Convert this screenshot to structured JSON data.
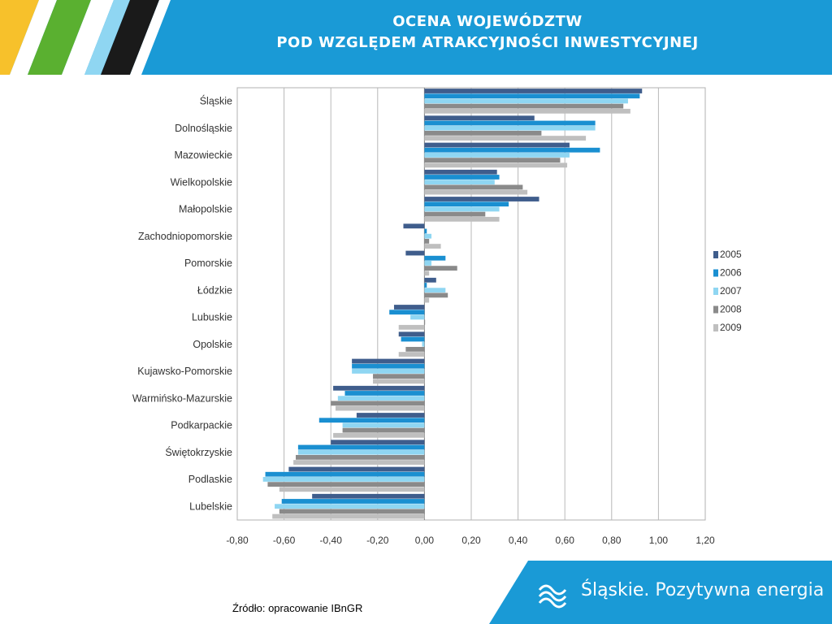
{
  "header": {
    "title_line1": "OCENA WOJEWÓDZTW",
    "title_line2": "POD WZGLĘDEM ATRAKCYJNOŚCI INWESTYCYJNEJ",
    "accent_color": "#1a9ad6",
    "stripe_colors": [
      "#f7c12b",
      "#5ab030",
      "#ffffff",
      "#1a1a1a"
    ]
  },
  "footer": {
    "source": "Źródło: opracowanie IBnGR",
    "brand_name": "Śląskie.",
    "brand_slogan": "Pozytywna energia",
    "logo_icon": "wave-logo-icon"
  },
  "chart_data": {
    "type": "bar",
    "orientation": "horizontal",
    "title": "",
    "xlabel": "",
    "ylabel": "",
    "xlim": [
      -0.8,
      1.2
    ],
    "x_ticks": [
      "-0,80",
      "-0,60",
      "-0,40",
      "-0,20",
      "0,00",
      "0,20",
      "0,40",
      "0,60",
      "0,80",
      "1,00",
      "1,20"
    ],
    "grid": "vertical",
    "legend_position": "right",
    "categories": [
      "Śląskie",
      "Dolnośląskie",
      "Mazowieckie",
      "Wielkopolskie",
      "Małopolskie",
      "Zachodniopomorskie",
      "Pomorskie",
      "Łódzkie",
      "Lubuskie",
      "Opolskie",
      "Kujawsko-Pomorskie",
      "Warmińsko-Mazurskie",
      "Podkarpackie",
      "Świętokrzyskie",
      "Podlaskie",
      "Lubelskie"
    ],
    "series": [
      {
        "name": "2005",
        "color": "#3f5d8c",
        "values": [
          0.93,
          0.47,
          0.62,
          0.31,
          0.49,
          -0.09,
          -0.08,
          0.05,
          -0.13,
          -0.11,
          -0.31,
          -0.39,
          -0.29,
          -0.4,
          -0.58,
          -0.48
        ]
      },
      {
        "name": "2006",
        "color": "#1a8fd1",
        "values": [
          0.92,
          0.73,
          0.75,
          0.32,
          0.36,
          0.01,
          0.09,
          0.01,
          -0.15,
          -0.1,
          -0.31,
          -0.34,
          -0.45,
          -0.54,
          -0.68,
          -0.61
        ]
      },
      {
        "name": "2007",
        "color": "#8fd6f2",
        "values": [
          0.87,
          0.73,
          0.62,
          0.3,
          0.32,
          0.03,
          0.03,
          0.09,
          -0.06,
          -0.01,
          -0.31,
          -0.37,
          -0.35,
          -0.54,
          -0.69,
          -0.64
        ]
      },
      {
        "name": "2008",
        "color": "#8a8a8a",
        "values": [
          0.85,
          0.5,
          0.58,
          0.42,
          0.26,
          0.02,
          0.14,
          0.1,
          0.0,
          -0.08,
          -0.22,
          -0.4,
          -0.35,
          -0.55,
          -0.67,
          -0.62
        ]
      },
      {
        "name": "2009",
        "color": "#bfbfbf",
        "values": [
          0.88,
          0.69,
          0.61,
          0.44,
          0.32,
          0.07,
          0.02,
          0.02,
          -0.11,
          -0.11,
          -0.22,
          -0.38,
          -0.39,
          -0.56,
          -0.62,
          -0.65
        ]
      }
    ]
  }
}
